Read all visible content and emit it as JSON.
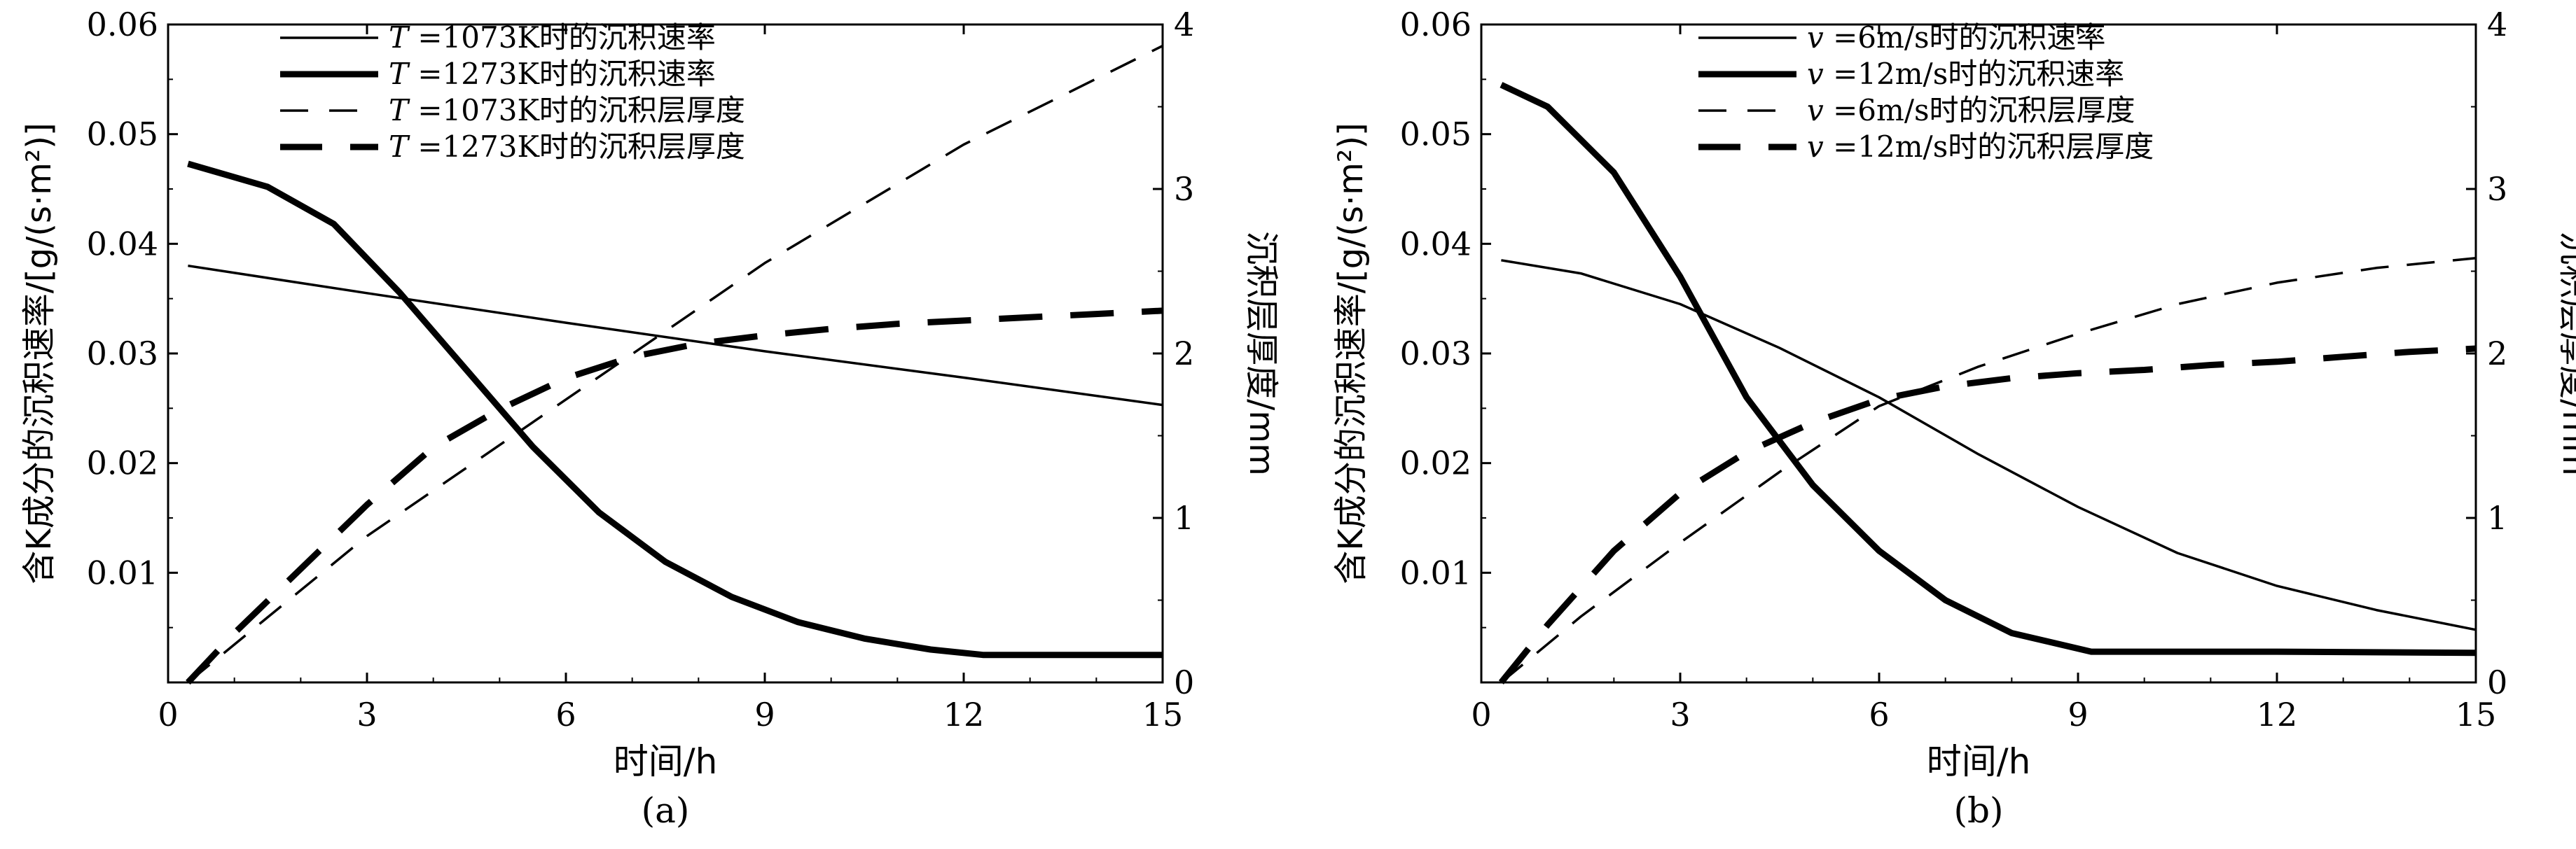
{
  "chart_data": [
    {
      "id": "a",
      "type": "line",
      "panel_label": "(a)",
      "xlabel": "时间/h",
      "ylabel_left": "含K成分的沉积速率/[g/(s·m²)]",
      "ylabel_right": "沉积层厚度/mm",
      "xlim": [
        0,
        15
      ],
      "ylim_left": [
        0,
        0.06
      ],
      "ylim_right": [
        0,
        4
      ],
      "x_ticks": [
        "0",
        "3",
        "6",
        "9",
        "12",
        "15"
      ],
      "y_left_ticks": [
        "0.01",
        "0.02",
        "0.03",
        "0.04",
        "0.05",
        "0.06"
      ],
      "y_right_ticks": [
        "0",
        "1",
        "2",
        "3",
        "4"
      ],
      "grid": false,
      "legend_position": "top-left",
      "series": [
        {
          "name": "T=1073K时的沉积速率",
          "legend_var": "T",
          "legend_rest": "=1073K时的沉积速率",
          "axis": "left",
          "style": "thin-solid",
          "x": [
            0.3,
            3,
            6,
            9,
            12,
            15
          ],
          "y": [
            0.038,
            0.0355,
            0.0328,
            0.0302,
            0.0278,
            0.0253
          ]
        },
        {
          "name": "T=1273K时的沉积速率",
          "legend_var": "T",
          "legend_rest": "=1273K时的沉积速率",
          "axis": "left",
          "style": "thick-solid",
          "x": [
            0.3,
            1.5,
            2.5,
            3.5,
            4.5,
            5.5,
            6.5,
            7.5,
            8.5,
            9.5,
            10.5,
            11.5,
            12.3,
            13,
            14,
            15
          ],
          "y": [
            0.0473,
            0.0452,
            0.0418,
            0.0355,
            0.0285,
            0.0215,
            0.0155,
            0.011,
            0.0078,
            0.0055,
            0.004,
            0.003,
            0.0025,
            0.0025,
            0.0025,
            0.0025
          ]
        },
        {
          "name": "T=1073K时的沉积层厚度",
          "legend_var": "T",
          "legend_rest": "=1073K时的沉积层厚度",
          "axis": "right",
          "style": "thin-dash",
          "x": [
            0.3,
            3,
            6,
            9,
            12,
            15
          ],
          "y": [
            0.0,
            0.89,
            1.72,
            2.55,
            3.27,
            3.87
          ]
        },
        {
          "name": "T=1273K时的沉积层厚度",
          "legend_var": "T",
          "legend_rest": "=1273K时的沉积层厚度",
          "axis": "right",
          "style": "thick-dash",
          "x": [
            0.3,
            1,
            2,
            3,
            4,
            5,
            6,
            7,
            8,
            9,
            10,
            11,
            12,
            13,
            14,
            15
          ],
          "y": [
            0.0,
            0.3,
            0.69,
            1.08,
            1.43,
            1.66,
            1.85,
            1.98,
            2.06,
            2.11,
            2.15,
            2.18,
            2.2,
            2.22,
            2.24,
            2.26
          ]
        }
      ]
    },
    {
      "id": "b",
      "type": "line",
      "panel_label": "(b)",
      "xlabel": "时间/h",
      "ylabel_left": "含K成分的沉积速率/[g/(s·m²)]",
      "ylabel_right": "沉积层厚度/mm",
      "xlim": [
        0,
        15
      ],
      "ylim_left": [
        0,
        0.06
      ],
      "ylim_right": [
        0,
        4
      ],
      "x_ticks": [
        "0",
        "3",
        "6",
        "9",
        "12",
        "15"
      ],
      "y_left_ticks": [
        "0.01",
        "0.02",
        "0.03",
        "0.04",
        "0.05",
        "0.06"
      ],
      "y_right_ticks": [
        "0",
        "1",
        "2",
        "3",
        "4"
      ],
      "grid": false,
      "legend_position": "top-left",
      "series": [
        {
          "name": "v=6m/s时的沉积速率",
          "legend_var": "v",
          "legend_rest": "=6m/s时的沉积速率",
          "axis": "left",
          "style": "thin-solid",
          "x": [
            0.3,
            1.5,
            3,
            4.5,
            6,
            7.5,
            9,
            10.5,
            12,
            13.5,
            15
          ],
          "y": [
            0.0385,
            0.0373,
            0.0345,
            0.0305,
            0.026,
            0.0208,
            0.016,
            0.0118,
            0.0088,
            0.0066,
            0.0048
          ]
        },
        {
          "name": "v=12m/s时的沉积速率",
          "legend_var": "v",
          "legend_rest": "=12m/s时的沉积速率",
          "axis": "left",
          "style": "thick-solid",
          "x": [
            0.3,
            1,
            2,
            3,
            4,
            5,
            6,
            7,
            8,
            9.2,
            10,
            12,
            15
          ],
          "y": [
            0.0545,
            0.0525,
            0.0465,
            0.037,
            0.026,
            0.018,
            0.012,
            0.0075,
            0.0045,
            0.0028,
            0.0028,
            0.0028,
            0.0027
          ]
        },
        {
          "name": "v=6m/s时的沉积层厚度",
          "legend_var": "v",
          "legend_rest": "=6m/s时的沉积层厚度",
          "axis": "right",
          "style": "thin-dash",
          "x": [
            0.3,
            1.5,
            3,
            4.5,
            6,
            7.5,
            9,
            10.5,
            12,
            13.5,
            15
          ],
          "y": [
            0.0,
            0.4,
            0.85,
            1.28,
            1.68,
            1.92,
            2.12,
            2.3,
            2.43,
            2.52,
            2.58
          ]
        },
        {
          "name": "v=12m/s时的沉积层厚度",
          "legend_var": "v",
          "legend_rest": "=12m/s时的沉积层厚度",
          "axis": "right",
          "style": "thick-dash",
          "x": [
            0.3,
            1,
            2,
            3,
            4,
            5,
            6,
            7,
            8,
            9,
            10,
            11,
            12,
            13,
            14,
            15
          ],
          "y": [
            0.0,
            0.35,
            0.8,
            1.15,
            1.4,
            1.58,
            1.72,
            1.8,
            1.85,
            1.88,
            1.9,
            1.93,
            1.95,
            1.98,
            2.01,
            2.03
          ]
        }
      ]
    }
  ]
}
